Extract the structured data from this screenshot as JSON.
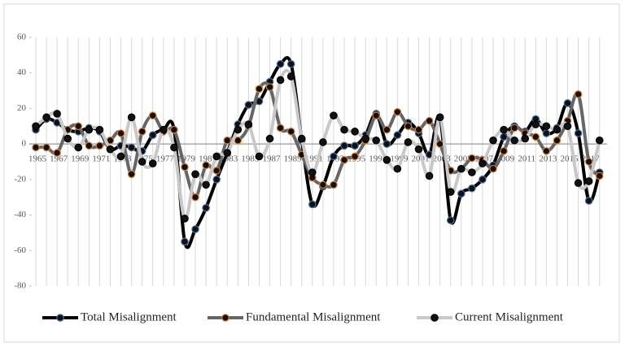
{
  "chart_data": {
    "type": "line",
    "categories": [
      "1965",
      null,
      "1967",
      null,
      "1969",
      null,
      "1971",
      null,
      "1973",
      null,
      "1975",
      null,
      "1977",
      null,
      "1979",
      null,
      "1981",
      null,
      "1983",
      null,
      "1985",
      null,
      "1987",
      null,
      "1989",
      null,
      "1991",
      null,
      "1993",
      null,
      "1995",
      null,
      "1997",
      null,
      "1999",
      null,
      "2001",
      null,
      "2003",
      null,
      "2005",
      null,
      "2007",
      null,
      "2009",
      null,
      "2011",
      null,
      "2013",
      null,
      "2015",
      null,
      "2017",
      null
    ],
    "series": [
      {
        "name": "Total Misalignment",
        "color": "#000000",
        "marker_edge": "#4a6fa5",
        "values": [
          8,
          14,
          12,
          8,
          7,
          9,
          7,
          -3,
          -1,
          -2,
          -4,
          5,
          8,
          8,
          -55,
          -48,
          -36,
          -20,
          -5,
          11,
          22,
          24,
          35,
          45,
          45,
          2,
          -34,
          -24,
          -7,
          -1,
          -1,
          5,
          17,
          0,
          5,
          12,
          6,
          -6,
          15,
          -43,
          -28,
          -25,
          -20,
          -12,
          4,
          10,
          7,
          14,
          6,
          9,
          23,
          6,
          -32,
          -16
        ]
      },
      {
        "name": "Fundamental Misalignment",
        "color": "#666666",
        "marker_edge": "#e07b2a",
        "values": [
          -2,
          -2,
          -5,
          8,
          10,
          -1,
          -1,
          2,
          6,
          -17,
          7,
          16,
          7,
          8,
          -13,
          -30,
          -12,
          -15,
          2,
          2,
          10,
          31,
          32,
          9,
          7,
          -6,
          -19,
          -23,
          -23,
          -9,
          -7,
          2,
          16,
          8,
          18,
          10,
          8,
          13,
          0,
          -15,
          -14,
          -8,
          -9,
          -14,
          -4,
          9,
          6,
          4,
          -4,
          2,
          13,
          28,
          -10,
          -18
        ]
      },
      {
        "name": "Current Misalignment",
        "color": "#c8c8c8",
        "marker_edge": "#000000",
        "values": [
          10,
          15,
          17,
          3,
          -2,
          8,
          8,
          -3,
          -7,
          15,
          -10,
          -11,
          8,
          -2,
          -42,
          -17,
          -23,
          -7,
          -5,
          8,
          11,
          -7,
          3,
          36,
          38,
          3,
          -16,
          1,
          16,
          8,
          7,
          3,
          2,
          -9,
          -14,
          1,
          -3,
          -18,
          15,
          -27,
          -14,
          -16,
          -11,
          2,
          8,
          2,
          3,
          11,
          10,
          8,
          10,
          -22,
          -21,
          2
        ]
      }
    ],
    "ylim": [
      -80,
      60
    ],
    "yticks": [
      -80,
      -60,
      -40,
      -20,
      0,
      20,
      40,
      60
    ],
    "grid": true,
    "legend": "bottom"
  }
}
